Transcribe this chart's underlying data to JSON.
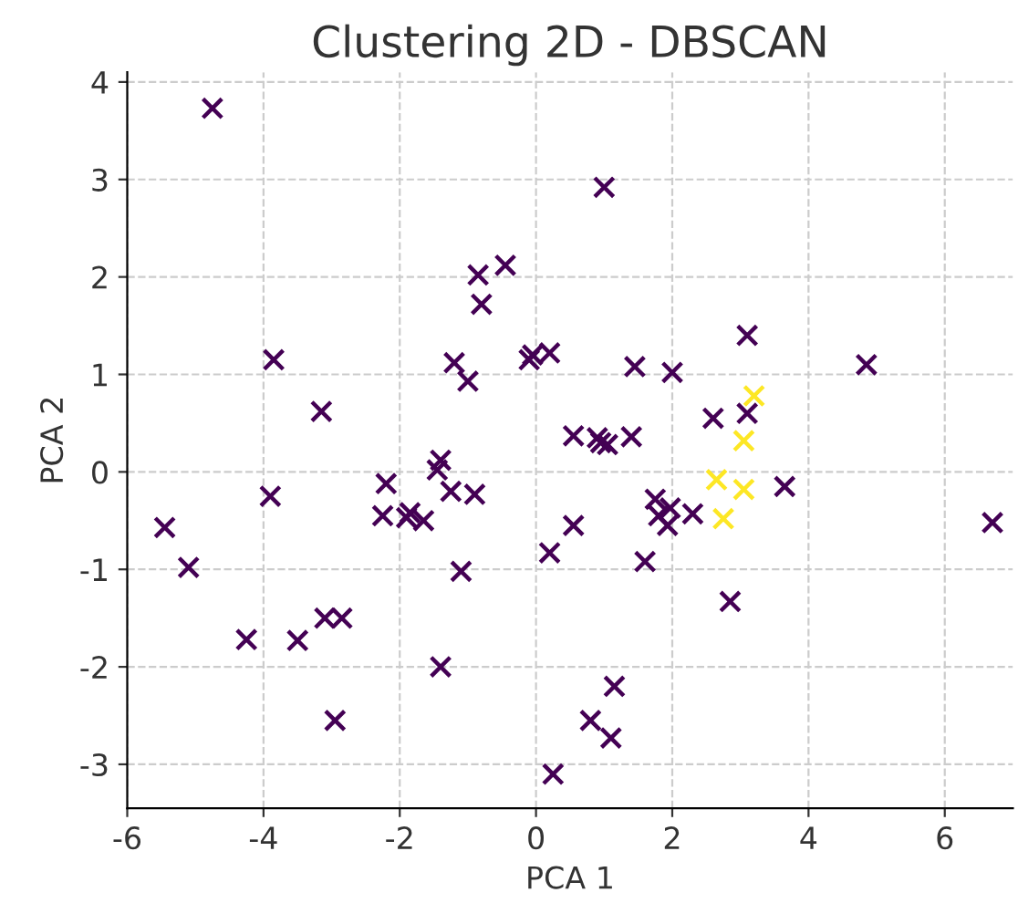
{
  "chart_data": {
    "type": "scatter",
    "title": "Clustering 2D - DBSCAN",
    "xlabel": "PCA 1",
    "ylabel": "PCA 2",
    "xlim": [
      -6.0,
      7.0
    ],
    "ylim": [
      -3.45,
      4.1
    ],
    "xticks": [
      -6,
      -4,
      -2,
      0,
      2,
      4,
      6
    ],
    "yticks": [
      -3,
      -2,
      -1,
      0,
      1,
      2,
      3,
      4
    ],
    "grid": true,
    "marker": "cross",
    "legend": false,
    "series": [
      {
        "color": "#440154",
        "x": [
          -4.75,
          1.0,
          -0.45,
          -0.85,
          -0.8,
          -0.05,
          -0.1,
          0.2,
          -3.85,
          -1.2,
          -1.0,
          -3.15,
          3.1,
          1.45,
          2.0,
          4.85,
          0.55,
          0.9,
          0.95,
          1.05,
          1.4,
          2.6,
          3.1,
          -1.4,
          -1.45,
          -3.9,
          -2.2,
          -1.25,
          -0.9,
          -2.25,
          -1.9,
          -1.85,
          -1.65,
          -5.45,
          -5.1,
          -1.1,
          0.2,
          0.55,
          1.75,
          1.97,
          1.8,
          1.93,
          2.3,
          1.6,
          3.65,
          6.7,
          2.85,
          -4.25,
          -3.5,
          -3.1,
          -2.85,
          -1.4,
          -2.95,
          0.25,
          1.15,
          0.8,
          1.1
        ],
        "values": [
          3.73,
          2.92,
          2.12,
          2.02,
          1.72,
          1.2,
          1.15,
          1.22,
          1.15,
          1.12,
          0.93,
          0.62,
          1.4,
          1.08,
          1.02,
          1.1,
          0.37,
          0.35,
          0.3,
          0.28,
          0.36,
          0.55,
          0.6,
          0.12,
          0.02,
          -0.25,
          -0.12,
          -0.2,
          -0.23,
          -0.45,
          -0.47,
          -0.42,
          -0.5,
          -0.57,
          -0.98,
          -1.02,
          -0.83,
          -0.55,
          -0.28,
          -0.37,
          -0.45,
          -0.55,
          -0.43,
          -0.92,
          -0.15,
          -0.52,
          -1.33,
          -1.72,
          -1.73,
          -1.5,
          -1.5,
          -2.0,
          -2.55,
          -3.1,
          -2.2,
          -2.55,
          -2.73
        ]
      },
      {
        "color": "#fde725",
        "x": [
          3.2,
          3.05,
          2.65,
          3.05,
          2.75
        ],
        "values": [
          0.78,
          0.32,
          -0.08,
          -0.18,
          -0.48
        ]
      }
    ]
  }
}
